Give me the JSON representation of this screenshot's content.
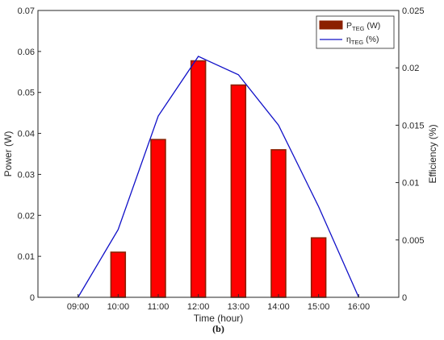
{
  "chart_data": {
    "type": "bar+line",
    "caption": "(b)",
    "xlabel": "Time (hour)",
    "ylabel_left": "Power (W)",
    "ylabel_right": "Efficiency (%)",
    "categories": [
      "09:00",
      "10:00",
      "11:00",
      "12:00",
      "13:00",
      "14:00",
      "15:00",
      "16:00"
    ],
    "left_axis": {
      "ylim": [
        0,
        0.07
      ],
      "ticks": [
        0,
        0.01,
        0.02,
        0.03,
        0.04,
        0.05,
        0.06,
        0.07
      ],
      "tick_labels": [
        "0",
        "0.01",
        "0.02",
        "0.03",
        "0.04",
        "0.05",
        "0.06",
        "0.07"
      ]
    },
    "right_axis": {
      "ylim": [
        0,
        0.025
      ],
      "ticks": [
        0,
        0.005,
        0.01,
        0.015,
        0.02,
        0.025
      ],
      "tick_labels": [
        "0",
        "0.005",
        "0.01",
        "0.015",
        "0.02",
        "0.025"
      ]
    },
    "series": [
      {
        "type": "bar",
        "axis": "left",
        "legend_main": "P",
        "legend_sub": "TEG",
        "legend_suffix": " (W)",
        "color": "#ff0000",
        "edge_color": "#8b2000",
        "values": [
          0,
          0.011,
          0.0385,
          0.0577,
          0.0518,
          0.036,
          0.0145,
          0
        ]
      },
      {
        "type": "line",
        "axis": "right",
        "legend_main": "η",
        "legend_sub": "TEG",
        "legend_suffix": " (%)",
        "color": "#1010c8",
        "values": [
          0,
          0.0059,
          0.0158,
          0.021,
          0.0194,
          0.015,
          0.0079,
          0
        ]
      }
    ],
    "legend_position": "top-right",
    "grid": false
  }
}
